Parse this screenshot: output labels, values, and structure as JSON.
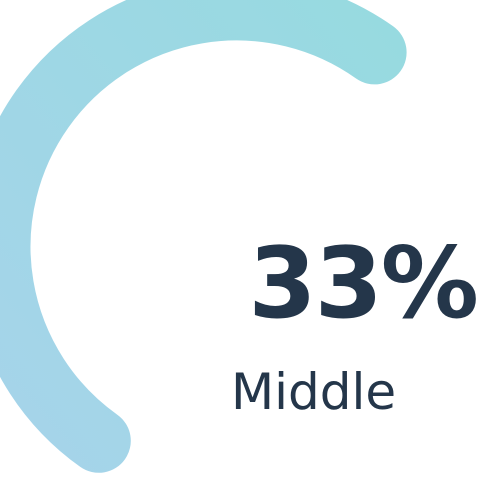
{
  "gauge": {
    "percent": 33,
    "value_text": "33%",
    "label": "Middle",
    "colors": {
      "arc_start": "#a6d4ea",
      "arc_end": "#97dae0",
      "text": "#24364a"
    }
  }
}
